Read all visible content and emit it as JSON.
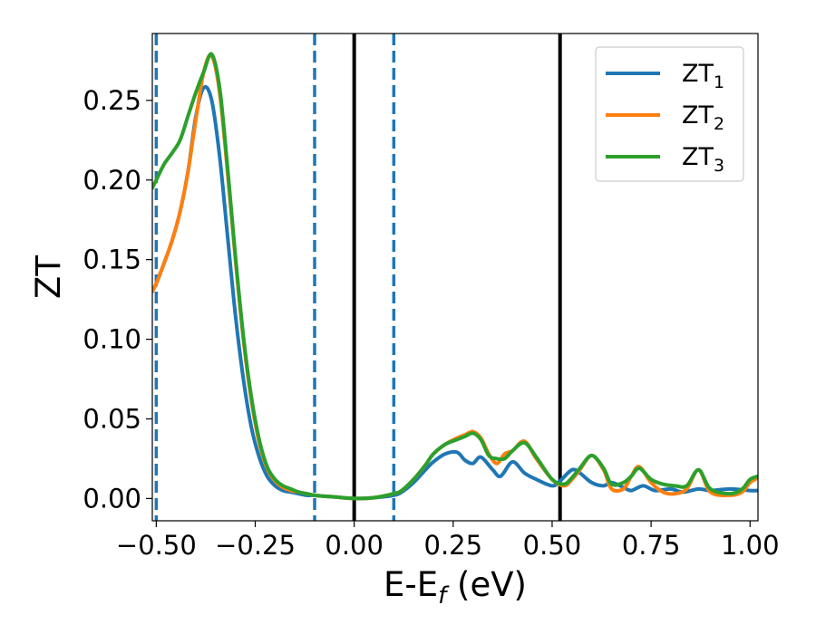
{
  "chart_data": {
    "type": "line",
    "title": "",
    "xlabel": "E-E",
    "xlabel_sub": "f",
    "xlabel_unit": " (eV)",
    "ylabel": "ZT",
    "xlim": [
      -0.51,
      1.02
    ],
    "ylim": [
      -0.014,
      0.292
    ],
    "xticks": [
      -0.5,
      -0.25,
      0.0,
      0.25,
      0.5,
      0.75,
      1.0
    ],
    "xtick_labels": [
      "−0.50",
      "−0.25",
      "0.00",
      "0.25",
      "0.50",
      "0.75",
      "1.00"
    ],
    "yticks": [
      0.0,
      0.05,
      0.1,
      0.15,
      0.2,
      0.25
    ],
    "ytick_labels": [
      "0.00",
      "0.05",
      "0.10",
      "0.15",
      "0.20",
      "0.25"
    ],
    "grid": false,
    "legend_position": "top-right",
    "vertical_lines": [
      {
        "x": -0.5,
        "style": "dashed",
        "color": "#1f77b4"
      },
      {
        "x": -0.1,
        "style": "dashed",
        "color": "#1f77b4"
      },
      {
        "x": 0.1,
        "style": "dashed",
        "color": "#1f77b4"
      },
      {
        "x": 0.0,
        "style": "solid",
        "color": "#000000"
      },
      {
        "x": 0.52,
        "style": "solid",
        "color": "#000000"
      }
    ],
    "series": [
      {
        "name": "ZT",
        "name_sub": "1",
        "color": "#1f77b4",
        "x": [
          -0.51,
          -0.5,
          -0.48,
          -0.46,
          -0.44,
          -0.42,
          -0.4,
          -0.38,
          -0.36,
          -0.34,
          -0.32,
          -0.3,
          -0.28,
          -0.26,
          -0.24,
          -0.22,
          -0.2,
          -0.18,
          -0.16,
          -0.14,
          -0.12,
          -0.1,
          -0.08,
          -0.05,
          0.0,
          0.05,
          0.1,
          0.12,
          0.15,
          0.18,
          0.2,
          0.23,
          0.26,
          0.28,
          0.3,
          0.32,
          0.35,
          0.37,
          0.4,
          0.43,
          0.46,
          0.5,
          0.52,
          0.55,
          0.57,
          0.6,
          0.63,
          0.65,
          0.68,
          0.7,
          0.73,
          0.76,
          0.8,
          0.83,
          0.87,
          0.9,
          0.95,
          1.0,
          1.02
        ],
        "y": [
          0.13,
          0.135,
          0.148,
          0.162,
          0.18,
          0.205,
          0.24,
          0.258,
          0.25,
          0.215,
          0.165,
          0.115,
          0.075,
          0.045,
          0.026,
          0.014,
          0.008,
          0.005,
          0.004,
          0.003,
          0.002,
          0.002,
          0.0015,
          0.001,
          0.0,
          0.0005,
          0.002,
          0.004,
          0.01,
          0.018,
          0.023,
          0.028,
          0.029,
          0.024,
          0.022,
          0.026,
          0.018,
          0.014,
          0.023,
          0.016,
          0.012,
          0.008,
          0.011,
          0.018,
          0.016,
          0.01,
          0.008,
          0.01,
          0.007,
          0.005,
          0.008,
          0.005,
          0.006,
          0.004,
          0.006,
          0.005,
          0.006,
          0.005,
          0.005
        ]
      },
      {
        "name": "ZT",
        "name_sub": "2",
        "color": "#ff7f0e",
        "x": [
          -0.51,
          -0.5,
          -0.48,
          -0.46,
          -0.44,
          -0.42,
          -0.4,
          -0.38,
          -0.36,
          -0.34,
          -0.32,
          -0.3,
          -0.28,
          -0.26,
          -0.24,
          -0.22,
          -0.2,
          -0.18,
          -0.16,
          -0.14,
          -0.12,
          -0.1,
          -0.08,
          -0.05,
          0.0,
          0.05,
          0.1,
          0.12,
          0.15,
          0.18,
          0.2,
          0.23,
          0.26,
          0.28,
          0.3,
          0.32,
          0.34,
          0.36,
          0.38,
          0.4,
          0.43,
          0.46,
          0.5,
          0.53,
          0.55,
          0.57,
          0.6,
          0.63,
          0.65,
          0.68,
          0.7,
          0.72,
          0.75,
          0.78,
          0.81,
          0.84,
          0.87,
          0.9,
          0.95,
          0.98,
          1.0,
          1.02
        ],
        "y": [
          0.13,
          0.135,
          0.148,
          0.162,
          0.18,
          0.205,
          0.238,
          0.268,
          0.278,
          0.255,
          0.205,
          0.15,
          0.1,
          0.062,
          0.035,
          0.019,
          0.011,
          0.007,
          0.005,
          0.004,
          0.003,
          0.002,
          0.0015,
          0.001,
          0.0,
          0.0005,
          0.003,
          0.005,
          0.012,
          0.021,
          0.028,
          0.034,
          0.038,
          0.04,
          0.042,
          0.038,
          0.028,
          0.022,
          0.028,
          0.03,
          0.036,
          0.025,
          0.012,
          0.008,
          0.012,
          0.018,
          0.027,
          0.018,
          0.006,
          0.006,
          0.014,
          0.02,
          0.01,
          0.004,
          0.003,
          0.006,
          0.018,
          0.004,
          0.002,
          0.004,
          0.01,
          0.013
        ]
      },
      {
        "name": "ZT",
        "name_sub": "3",
        "color": "#2ca02c",
        "x": [
          -0.51,
          -0.5,
          -0.48,
          -0.46,
          -0.44,
          -0.42,
          -0.4,
          -0.38,
          -0.36,
          -0.34,
          -0.32,
          -0.3,
          -0.28,
          -0.26,
          -0.24,
          -0.22,
          -0.2,
          -0.18,
          -0.16,
          -0.14,
          -0.12,
          -0.1,
          -0.08,
          -0.05,
          0.0,
          0.05,
          0.1,
          0.12,
          0.15,
          0.18,
          0.2,
          0.23,
          0.26,
          0.28,
          0.3,
          0.32,
          0.34,
          0.36,
          0.38,
          0.4,
          0.43,
          0.46,
          0.5,
          0.53,
          0.55,
          0.57,
          0.6,
          0.63,
          0.65,
          0.68,
          0.7,
          0.72,
          0.75,
          0.78,
          0.81,
          0.84,
          0.87,
          0.9,
          0.95,
          0.98,
          1.0,
          1.02
        ],
        "y": [
          0.195,
          0.2,
          0.21,
          0.217,
          0.225,
          0.24,
          0.255,
          0.268,
          0.279,
          0.258,
          0.208,
          0.152,
          0.102,
          0.064,
          0.037,
          0.02,
          0.012,
          0.008,
          0.006,
          0.004,
          0.003,
          0.002,
          0.0015,
          0.001,
          0.0,
          0.0005,
          0.003,
          0.005,
          0.012,
          0.021,
          0.028,
          0.034,
          0.037,
          0.039,
          0.041,
          0.037,
          0.027,
          0.025,
          0.025,
          0.03,
          0.035,
          0.026,
          0.012,
          0.009,
          0.013,
          0.019,
          0.027,
          0.019,
          0.009,
          0.01,
          0.014,
          0.019,
          0.012,
          0.009,
          0.008,
          0.008,
          0.018,
          0.006,
          0.003,
          0.006,
          0.012,
          0.014
        ]
      }
    ]
  }
}
